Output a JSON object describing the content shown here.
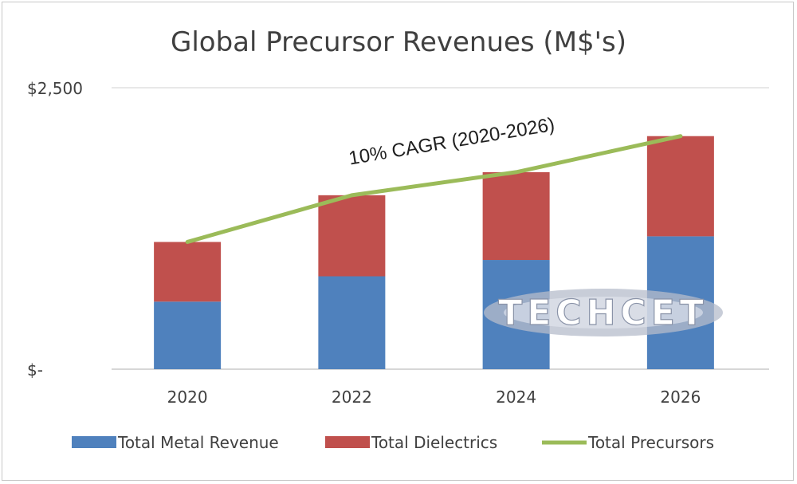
{
  "chart_data": {
    "type": "bar",
    "title": "Global Precursor Revenues (M$'s)",
    "xlabel": "",
    "ylabel": "",
    "categories": [
      "2020",
      "2022",
      "2024",
      "2026"
    ],
    "y_tick_labels": [
      "$-",
      "$2,500"
    ],
    "ylim": [
      0,
      2500
    ],
    "grid": true,
    "stacked": true,
    "legend_position": "bottom",
    "series": [
      {
        "name": "Total Metal Revenue",
        "kind": "bar",
        "color": "#4f81bd",
        "values": [
          600,
          825,
          970,
          1180
        ]
      },
      {
        "name": "Total Dielectrics",
        "kind": "bar",
        "color": "#c0504d",
        "values": [
          530,
          720,
          780,
          890
        ]
      },
      {
        "name": "Total Precursors",
        "kind": "line",
        "color": "#9bbb59",
        "values": [
          1130,
          1545,
          1750,
          2070
        ]
      }
    ],
    "annotations": [
      "10% CAGR (2020-2026)"
    ],
    "watermark": "TECHCET"
  }
}
